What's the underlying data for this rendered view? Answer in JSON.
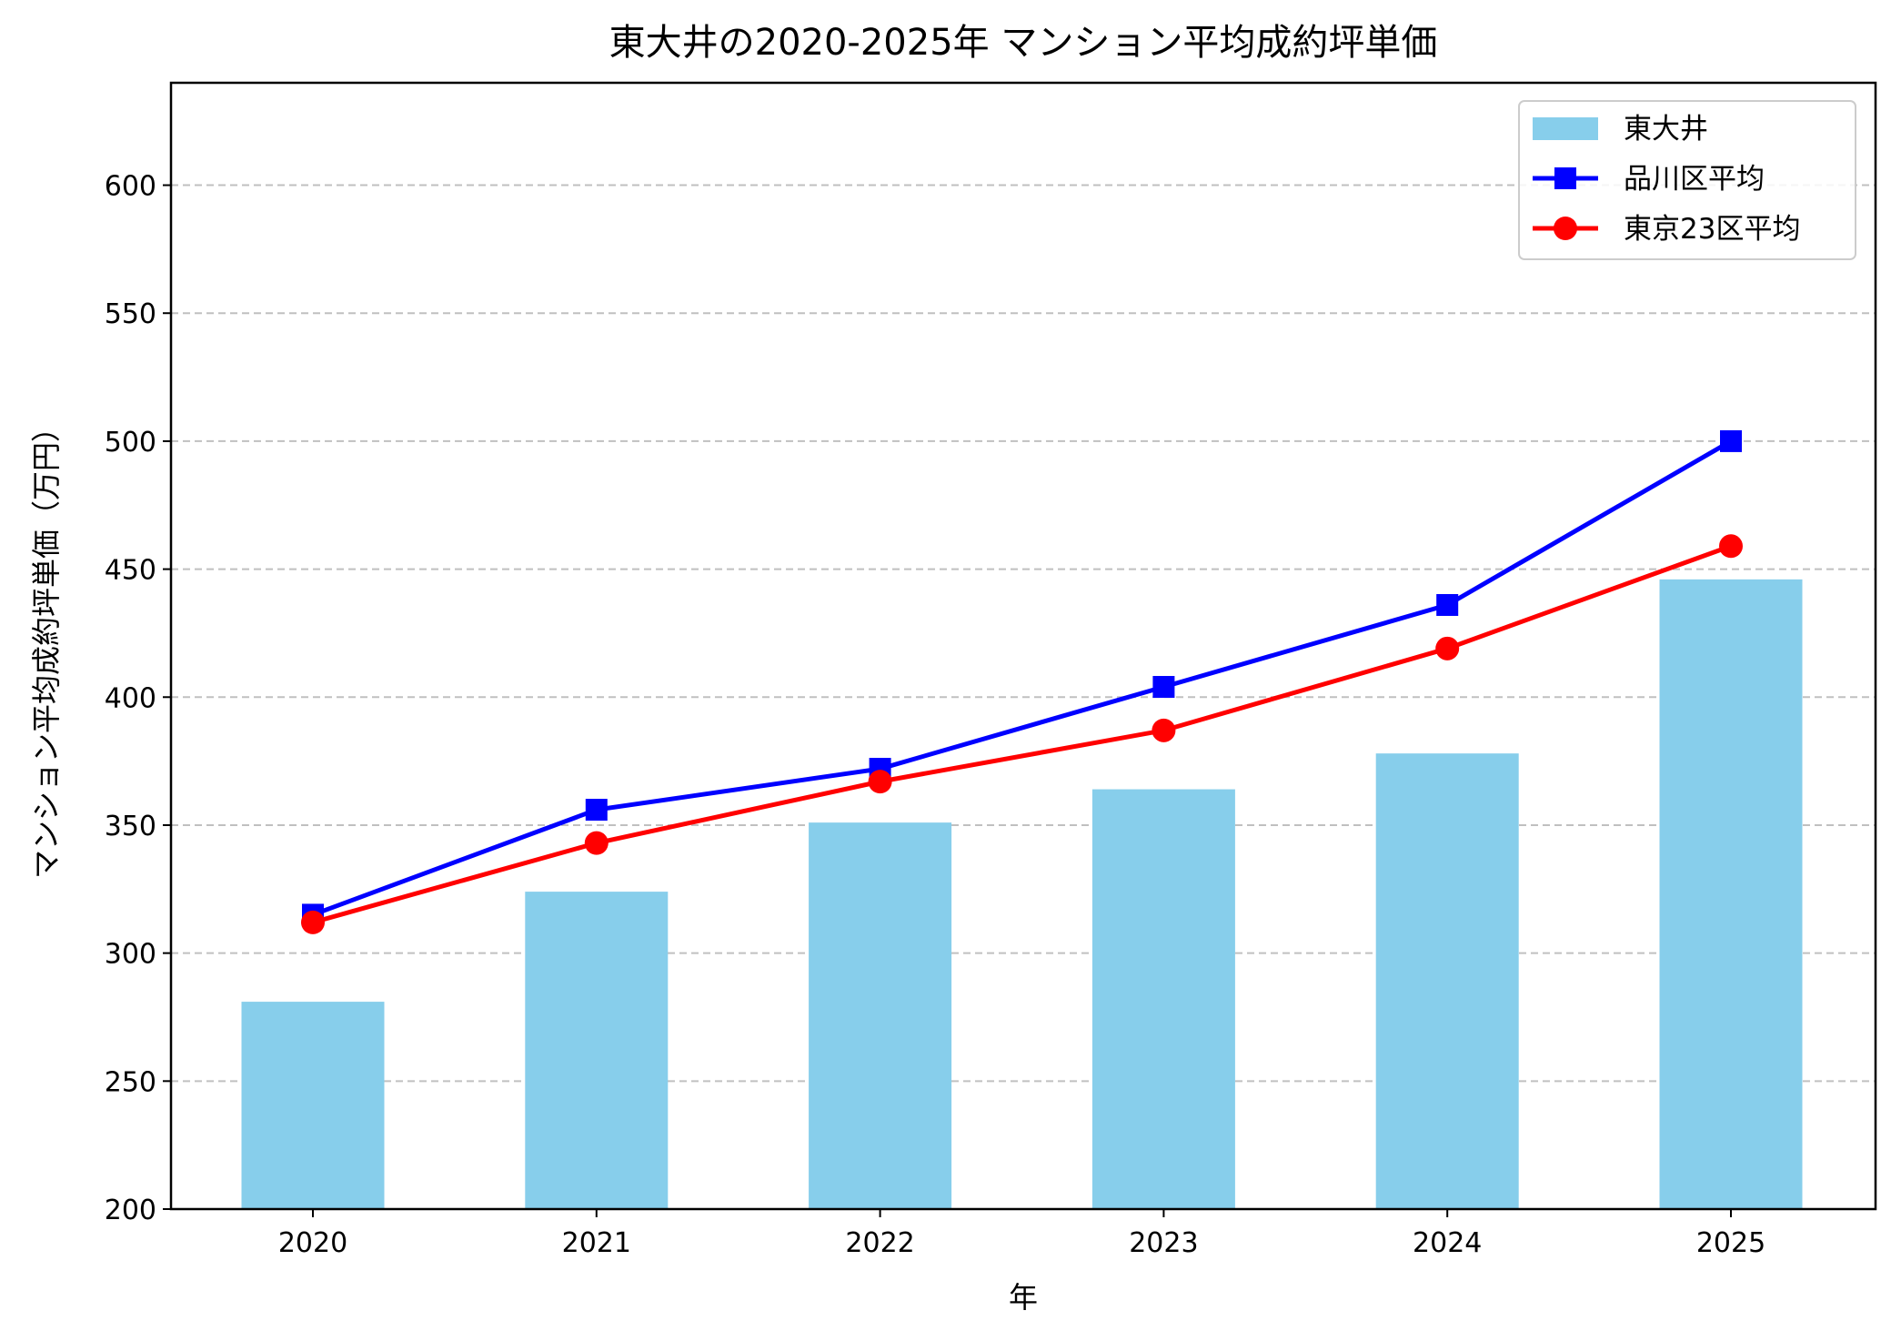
{
  "chart_data": {
    "type": "bar+line",
    "title": "東大井の2020-2025年 マンション平均成約坪単価",
    "xlabel": "年",
    "ylabel": "マンション平均成約坪単価（万円）",
    "categories": [
      "2020",
      "2021",
      "2022",
      "2023",
      "2024",
      "2025"
    ],
    "ylim": [
      200,
      640
    ],
    "yticks": [
      200,
      250,
      300,
      350,
      400,
      450,
      500,
      550,
      600
    ],
    "grid": "y-dashed",
    "legend_position": "top-right",
    "series": [
      {
        "name": "東大井",
        "kind": "bar",
        "color": "#87CEEB",
        "values": [
          281,
          324,
          351,
          364,
          378,
          446
        ]
      },
      {
        "name": "品川区平均",
        "kind": "line",
        "marker": "square",
        "color": "#0000FF",
        "values": [
          315,
          356,
          372,
          404,
          436,
          500
        ]
      },
      {
        "name": "東京23区平均",
        "kind": "line",
        "marker": "circle",
        "color": "#FF0000",
        "values": [
          312,
          343,
          367,
          387,
          419,
          459
        ]
      }
    ]
  }
}
